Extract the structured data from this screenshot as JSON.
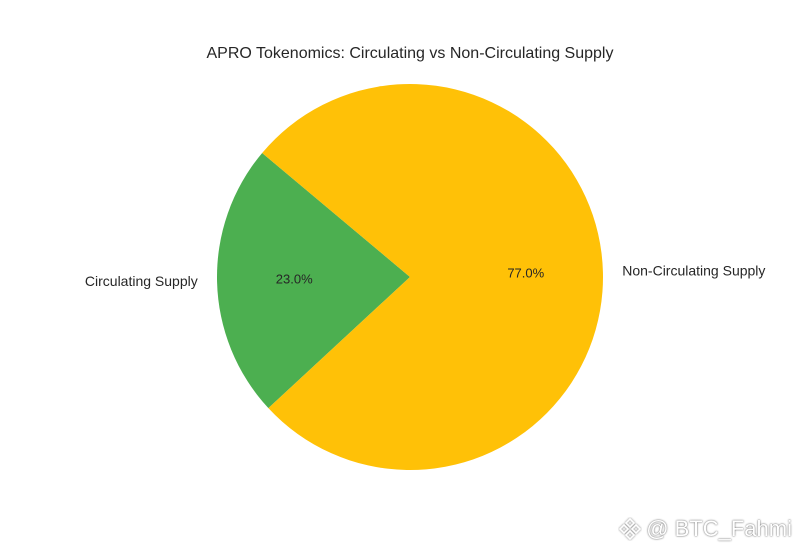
{
  "chart_data": {
    "type": "pie",
    "title": "APRO Tokenomics: Circulating vs Non-Circulating Supply",
    "slices": [
      {
        "label": "Circulating Supply",
        "value": 23.0,
        "pct_label": "23.0%",
        "color": "#4caf50"
      },
      {
        "label": "Non-Circulating Supply",
        "value": 77.0,
        "pct_label": "77.0%",
        "color": "#ffc107"
      }
    ],
    "start_angle_deg": 140,
    "direction": "counterclockwise"
  },
  "watermark": {
    "logo_icon": "binance-logo-icon",
    "text": "@ BTC_Fahmi"
  }
}
